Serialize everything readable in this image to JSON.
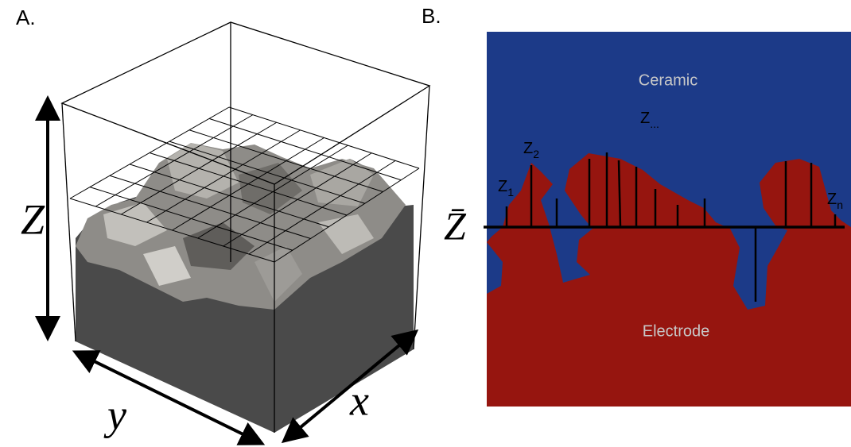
{
  "panel_a": {
    "label": "A.",
    "axes": {
      "z": "Z",
      "y": "y",
      "x": "x"
    }
  },
  "panel_b": {
    "label": "B.",
    "top_region": "Ceramic",
    "bottom_region": "Electrode",
    "mean_line": "Z̄",
    "heights": [
      {
        "main": "Z",
        "sub": "1"
      },
      {
        "main": "Z",
        "sub": "2"
      },
      {
        "main": "Z",
        "sub": "..."
      },
      {
        "main": "Z",
        "sub": "n"
      }
    ]
  }
}
